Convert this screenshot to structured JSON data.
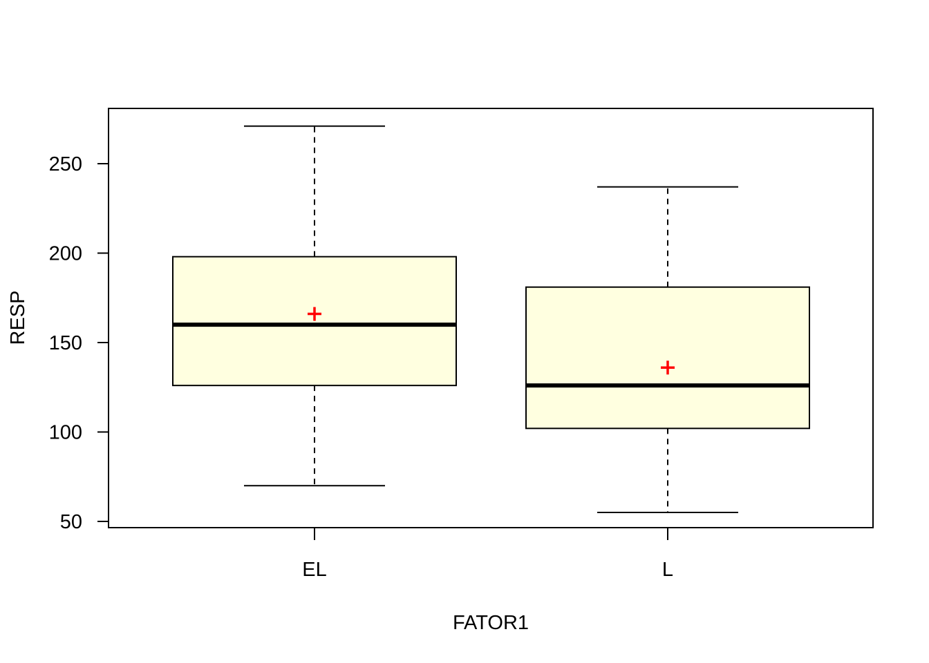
{
  "chart_data": {
    "type": "boxplot",
    "title": "",
    "xlabel": "FATOR1",
    "ylabel": "RESP",
    "ylim": [
      47,
      281
    ],
    "yticks": [
      50,
      100,
      150,
      200,
      250
    ],
    "categories": [
      "EL",
      "L"
    ],
    "boxes": [
      {
        "category": "EL",
        "whisker_low": 70,
        "q1": 126,
        "median": 160,
        "q3": 198,
        "whisker_high": 271,
        "mean": 166
      },
      {
        "category": "L",
        "whisker_low": 55,
        "q1": 102,
        "median": 126,
        "q3": 181,
        "whisker_high": 237,
        "mean": 136
      }
    ],
    "grid": false,
    "colors": {
      "box_fill": "#FFFFE0",
      "box_stroke": "#000000",
      "median": "#000000",
      "mean_marker": "#FF0000"
    }
  }
}
